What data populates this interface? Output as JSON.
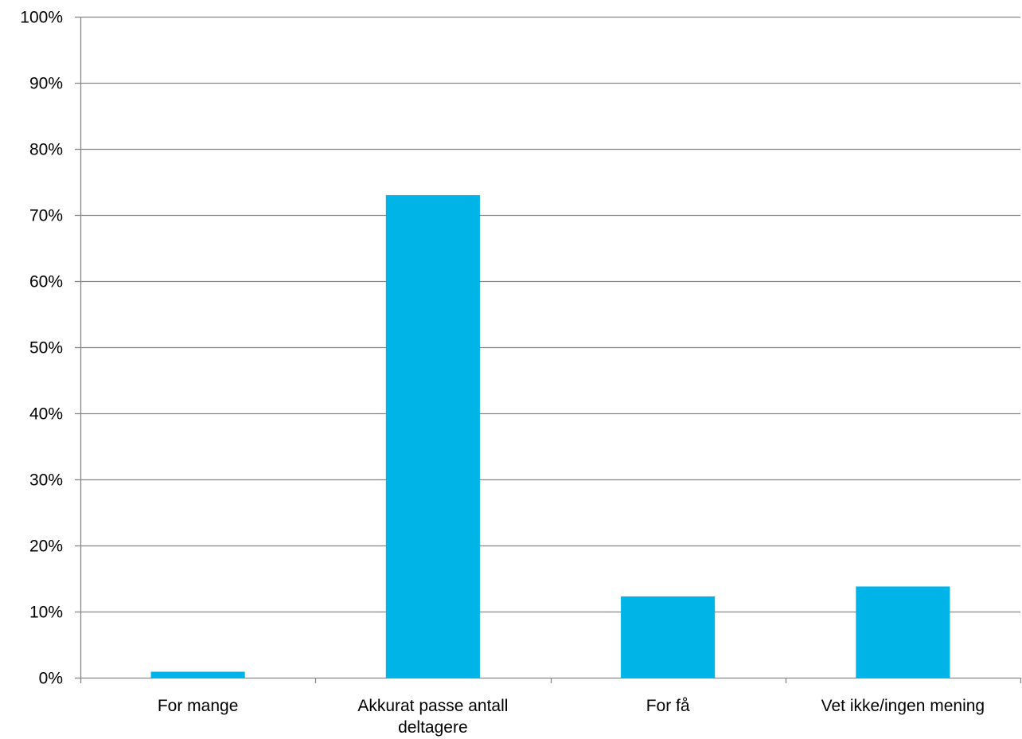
{
  "chart_data": {
    "type": "bar",
    "title": "",
    "xlabel": "",
    "ylabel": "",
    "categories": [
      [
        "For mange"
      ],
      [
        "Akkurat passe antall",
        "deltagere"
      ],
      [
        "For få"
      ],
      [
        "Vet ikke/ingen mening"
      ]
    ],
    "values": [
      0.9,
      73.0,
      12.3,
      13.8
    ],
    "ylim": [
      0,
      100
    ],
    "y_ticks": [
      0,
      10,
      20,
      30,
      40,
      50,
      60,
      70,
      80,
      90,
      100
    ],
    "y_tick_labels": [
      "0%",
      "10%",
      "20%",
      "30%",
      "40%",
      "50%",
      "60%",
      "70%",
      "80%",
      "90%",
      "100%"
    ],
    "grid": true,
    "legend": "none",
    "bar_color": "#00B4E8",
    "grid_color": "#878787"
  }
}
